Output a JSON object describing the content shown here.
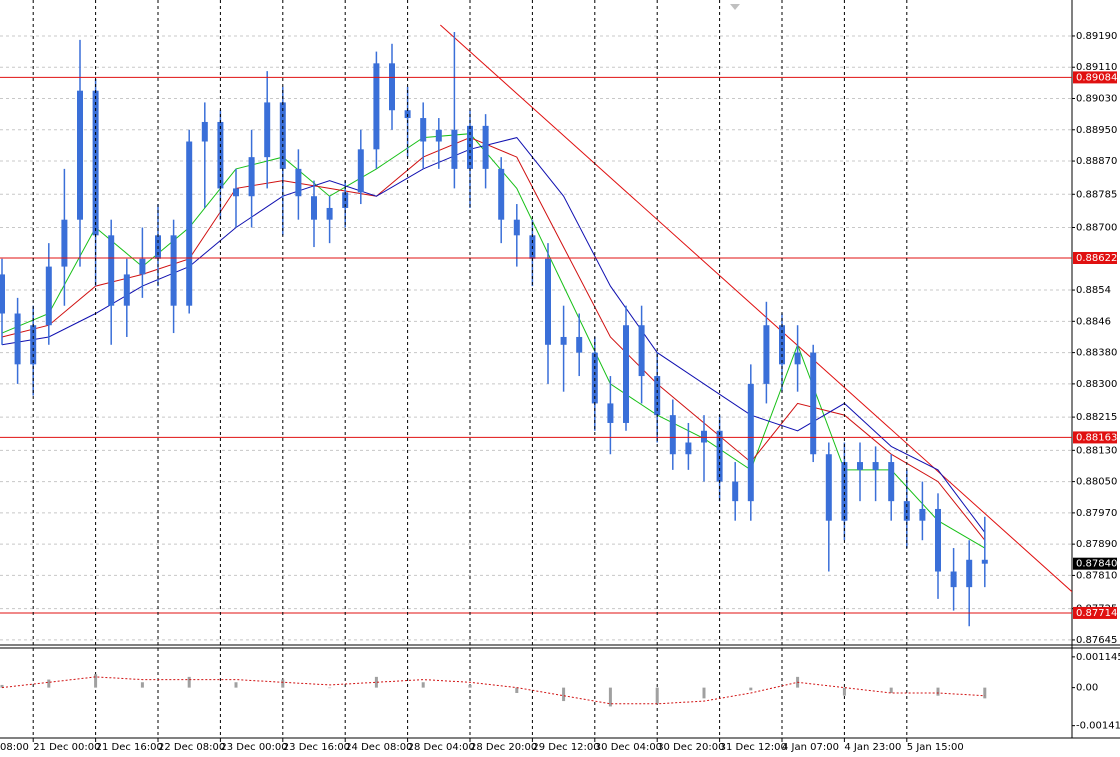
{
  "chart_data": {
    "type": "candlestick",
    "color": "#3a6fd8",
    "candles": {
      "open": [
        0.8858,
        0.8848,
        0.8835,
        0.8845,
        0.886,
        0.8872,
        0.8905,
        0.8868,
        0.885,
        0.8858,
        0.8862,
        0.8868,
        0.885,
        0.8892,
        0.8897,
        0.888,
        0.8878,
        0.8888,
        0.8902,
        0.8885,
        0.8878,
        0.8872,
        0.8875,
        0.8879,
        0.889,
        0.8912,
        0.89,
        0.8898,
        0.8892,
        0.8895,
        0.8885,
        0.8896,
        0.8885,
        0.8872,
        0.8868,
        0.8862,
        0.884,
        0.8842,
        0.8838,
        0.8825,
        0.882,
        0.8845,
        0.8832,
        0.8822,
        0.8812,
        0.8815,
        0.8818,
        0.8805,
        0.88,
        0.883,
        0.8845,
        0.8835,
        0.8838,
        0.8812,
        0.8795,
        0.881,
        0.8808,
        0.881,
        0.88,
        0.8795,
        0.8798,
        0.8782,
        0.8778,
        0.8785
      ],
      "high": [
        0.8862,
        0.8852,
        0.885,
        0.8866,
        0.8885,
        0.8918,
        0.8908,
        0.8872,
        0.8862,
        0.887,
        0.8876,
        0.8872,
        0.8895,
        0.8902,
        0.89,
        0.8885,
        0.8895,
        0.891,
        0.8906,
        0.889,
        0.8882,
        0.8878,
        0.8882,
        0.8895,
        0.8915,
        0.8917,
        0.8906,
        0.8902,
        0.8898,
        0.892,
        0.89,
        0.8899,
        0.8888,
        0.8876,
        0.8872,
        0.8866,
        0.885,
        0.8848,
        0.8842,
        0.8832,
        0.885,
        0.885,
        0.8838,
        0.8826,
        0.882,
        0.8822,
        0.8822,
        0.881,
        0.8835,
        0.8851,
        0.8848,
        0.8845,
        0.884,
        0.8815,
        0.8815,
        0.8815,
        0.8814,
        0.8812,
        0.8808,
        0.8805,
        0.8802,
        0.8788,
        0.879,
        0.8796
      ],
      "low": [
        0.884,
        0.883,
        0.8827,
        0.884,
        0.885,
        0.886,
        0.8855,
        0.884,
        0.8842,
        0.8852,
        0.8855,
        0.8843,
        0.8848,
        0.8875,
        0.8872,
        0.887,
        0.887,
        0.888,
        0.8868,
        0.8872,
        0.8865,
        0.8866,
        0.887,
        0.8876,
        0.8885,
        0.8895,
        0.8888,
        0.8885,
        0.8885,
        0.888,
        0.8875,
        0.888,
        0.8866,
        0.886,
        0.8855,
        0.883,
        0.8828,
        0.8832,
        0.8818,
        0.8812,
        0.8818,
        0.8825,
        0.8815,
        0.8808,
        0.8808,
        0.8805,
        0.88,
        0.8795,
        0.8795,
        0.8825,
        0.8828,
        0.8828,
        0.881,
        0.8782,
        0.879,
        0.88,
        0.88,
        0.8795,
        0.8788,
        0.879,
        0.8775,
        0.8772,
        0.8768,
        0.8778
      ],
      "close": [
        0.8848,
        0.8835,
        0.8845,
        0.886,
        0.8872,
        0.8905,
        0.8868,
        0.885,
        0.8858,
        0.8862,
        0.8868,
        0.885,
        0.8892,
        0.8897,
        0.888,
        0.8878,
        0.8888,
        0.8902,
        0.8885,
        0.8878,
        0.8872,
        0.8875,
        0.8879,
        0.889,
        0.8912,
        0.89,
        0.8898,
        0.8892,
        0.8895,
        0.8885,
        0.8896,
        0.8885,
        0.8872,
        0.8868,
        0.8862,
        0.884,
        0.8842,
        0.8838,
        0.8825,
        0.882,
        0.8845,
        0.8832,
        0.8822,
        0.8812,
        0.8815,
        0.8818,
        0.8805,
        0.88,
        0.883,
        0.8845,
        0.8835,
        0.8838,
        0.8812,
        0.8795,
        0.881,
        0.8808,
        0.881,
        0.88,
        0.8795,
        0.8798,
        0.8782,
        0.8778,
        0.8785,
        0.8784
      ]
    },
    "xticks": [
      {
        "value": -2,
        "label": "08:00"
      },
      {
        "value": 2,
        "label": "21 Dec 00:00"
      },
      {
        "value": 6,
        "label": "21 Dec 16:00"
      },
      {
        "value": 10,
        "label": "22 Dec 08:00"
      },
      {
        "value": 14,
        "label": "23 Dec 00:00"
      },
      {
        "value": 18,
        "label": "23 Dec 16:00"
      },
      {
        "value": 22,
        "label": "24 Dec 08:00"
      },
      {
        "value": 26,
        "label": "28 Dec 04:00"
      },
      {
        "value": 30,
        "label": "28 Dec 20:00"
      },
      {
        "value": 34,
        "label": "29 Dec 12:00"
      },
      {
        "value": 38,
        "label": "30 Dec 04:00"
      },
      {
        "value": 42,
        "label": "30 Dec 20:00"
      },
      {
        "value": 46,
        "label": "31 Dec 12:00"
      },
      {
        "value": 50,
        "label": "4 Jan 07:00"
      },
      {
        "value": 54,
        "label": "4 Jan 23:00"
      },
      {
        "value": 58,
        "label": "5 Jan 15:00"
      }
    ],
    "ylim": [
      0.87632,
      0.89282
    ],
    "yticks": [
      {
        "value": 0.8919,
        "label": "0.89190"
      },
      {
        "value": 0.8911,
        "label": "0.89110"
      },
      {
        "value": 0.8903,
        "label": "0.89030"
      },
      {
        "value": 0.8895,
        "label": "0.88950"
      },
      {
        "value": 0.8887,
        "label": "0.88870"
      },
      0.88785,
      {
        "value": 0.887,
        "label": "0.88700"
      },
      0.8854,
      0.8846,
      {
        "value": 0.8838,
        "label": "0.88380"
      },
      {
        "value": 0.883,
        "label": "0.88300"
      },
      0.88215,
      {
        "value": 0.8813,
        "label": "0.88130"
      },
      {
        "value": 0.8805,
        "label": "0.88050"
      },
      {
        "value": 0.8797,
        "label": "0.87970"
      },
      {
        "value": 0.8789,
        "label": "0.87890"
      },
      {
        "value": 0.8781,
        "label": "0.87810"
      },
      0.87725,
      0.87645
    ],
    "grid": true,
    "hlines": {
      "color": "#e01010",
      "values": [
        0.89084,
        0.88622,
        0.88163,
        0.87714
      ]
    },
    "current_price": {
      "value": 0.8784,
      "label": "0.87840"
    },
    "moving_averages": [
      {
        "color": "#18c018",
        "x": [
          0,
          3,
          6,
          9,
          12,
          15,
          18,
          21,
          24,
          27,
          30,
          33,
          36,
          39,
          42,
          45,
          48,
          51,
          54,
          57,
          60,
          63
        ],
        "values": [
          0.8843,
          0.8848,
          0.887,
          0.886,
          0.887,
          0.8885,
          0.8888,
          0.8878,
          0.8885,
          0.8893,
          0.8894,
          0.888,
          0.8855,
          0.883,
          0.8822,
          0.8816,
          0.8808,
          0.884,
          0.8808,
          0.8808,
          0.8795,
          0.8788
        ]
      },
      {
        "color": "#d01010",
        "x": [
          0,
          3,
          6,
          9,
          12,
          15,
          18,
          21,
          24,
          27,
          30,
          33,
          36,
          39,
          42,
          45,
          48,
          51,
          54,
          57,
          60,
          63
        ],
        "values": [
          0.8842,
          0.8845,
          0.8855,
          0.8858,
          0.8862,
          0.888,
          0.8882,
          0.888,
          0.8878,
          0.8888,
          0.8893,
          0.8888,
          0.8865,
          0.8842,
          0.883,
          0.882,
          0.881,
          0.8825,
          0.8822,
          0.8812,
          0.8805,
          0.879
        ]
      },
      {
        "color": "#1010b0",
        "x": [
          0,
          3,
          6,
          9,
          12,
          15,
          18,
          21,
          24,
          27,
          30,
          33,
          36,
          39,
          42,
          45,
          48,
          51,
          54,
          57,
          60,
          63
        ],
        "values": [
          0.884,
          0.8842,
          0.8848,
          0.8855,
          0.886,
          0.887,
          0.8878,
          0.8882,
          0.8878,
          0.8885,
          0.889,
          0.8893,
          0.8878,
          0.8855,
          0.8838,
          0.883,
          0.8822,
          0.8818,
          0.8825,
          0.8814,
          0.8808,
          0.8792
        ]
      }
    ],
    "trendline": {
      "color": "#e01010",
      "x": [
        28.1,
        68.6
      ],
      "y": [
        0.89218,
        0.87768
      ]
    },
    "oscillator": {
      "ylim": [
        -0.0018,
        0.0014
      ],
      "yticks": [
        0.001145,
        {
          "value": 0,
          "label": "0.00"
        },
        -0.001415
      ],
      "color": "#a0a0a0",
      "signal_color": "#d01010",
      "x": [
        0,
        3,
        6,
        9,
        12,
        15,
        18,
        21,
        24,
        27,
        30,
        33,
        36,
        39,
        42,
        45,
        48,
        51,
        54,
        57,
        60,
        63
      ],
      "values": [
        0.0001,
        0.0003,
        0.0005,
        0.0002,
        0.0004,
        0.0002,
        0.0003,
        0.0,
        0.0004,
        0.0002,
        0.0001,
        -0.0002,
        -0.0005,
        -0.0007,
        -0.0006,
        -0.0004,
        -0.0001,
        0.0004,
        -0.0003,
        -0.0002,
        -0.0003,
        -0.0004
      ],
      "signal": [
        0.0,
        0.0002,
        0.0004,
        0.0003,
        0.0003,
        0.0003,
        0.0002,
        0.0001,
        0.0002,
        0.0003,
        0.0002,
        0.0,
        -0.0003,
        -0.0006,
        -0.0006,
        -0.0005,
        -0.0002,
        0.0002,
        0.0,
        -0.0002,
        -0.0002,
        -0.0003
      ]
    }
  }
}
